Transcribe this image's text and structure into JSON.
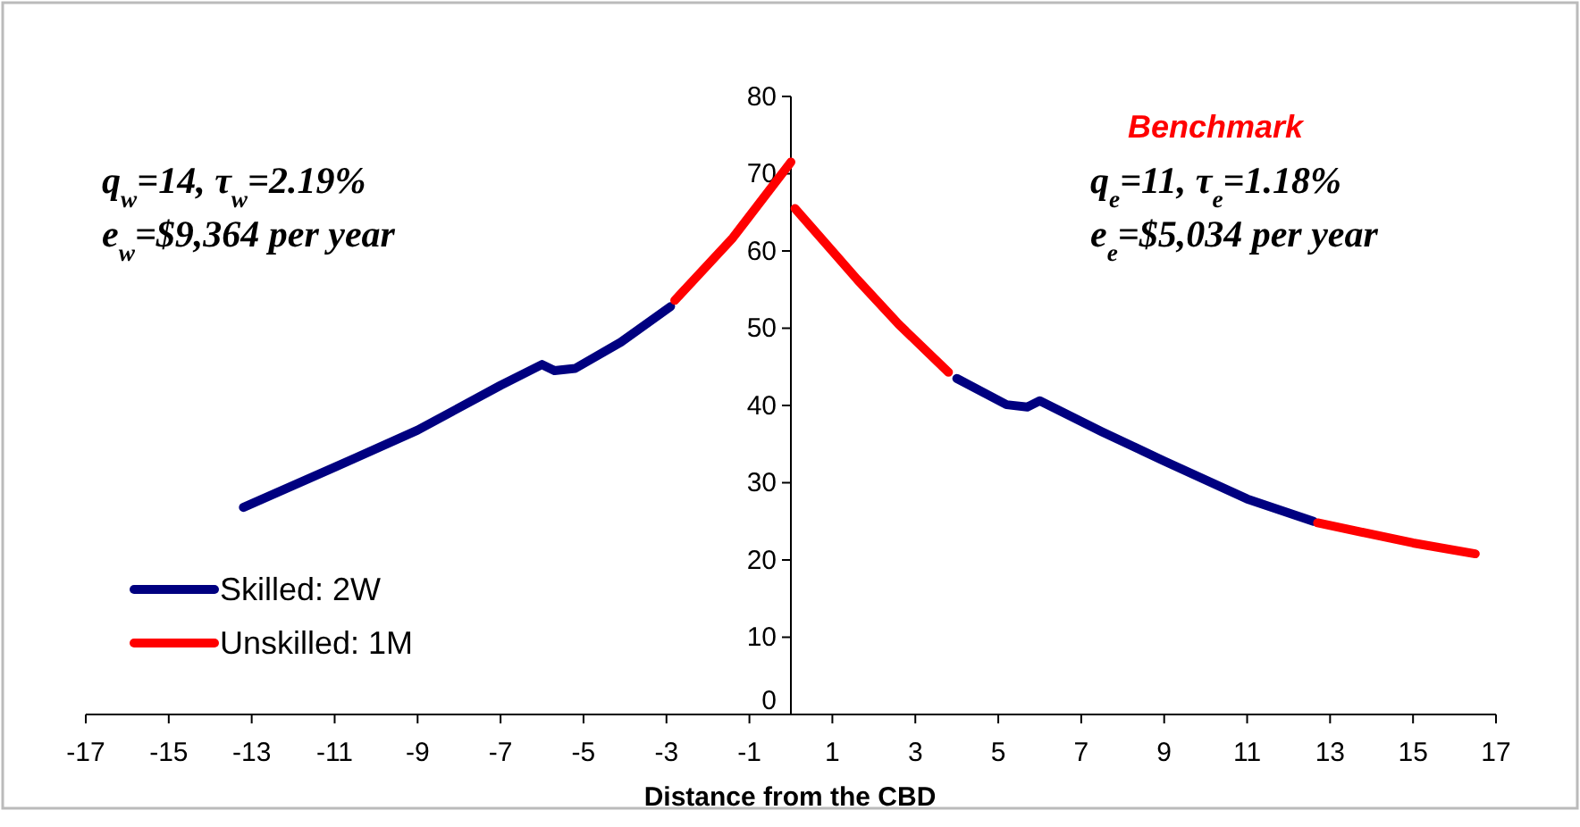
{
  "chart_data": {
    "type": "line",
    "xlabel": "Distance from the CBD",
    "xlim": [
      -17,
      17
    ],
    "xticks": [
      -17,
      -15,
      -13,
      -11,
      -9,
      -7,
      -5,
      -3,
      -1,
      1,
      3,
      5,
      7,
      9,
      11,
      13,
      15,
      17
    ],
    "ylim": [
      0,
      80
    ],
    "yticks": [
      0,
      10,
      20,
      30,
      40,
      50,
      60,
      70,
      80
    ],
    "grid": false,
    "legend": "bottom left",
    "marker": "none",
    "line_style": "solid",
    "annotations": [
      "Benchmark",
      "q$_{w}$=14, τ$_{w}$=2.19%",
      "e$_{w}$=$9,364 per year",
      "q$_{e}$=11, τ$_{e}$=1.18%",
      "e$_{e}$=$5,034 per year"
    ],
    "series": [
      {
        "name": "Skilled: 2W",
        "color": "#000080",
        "x": [
          -13.2,
          -11,
          -9,
          -7,
          -6,
          -5.7,
          -5.2,
          -4.1,
          -2.9,
          0,
          4.0,
          5.2,
          5.7,
          6.0,
          7.5,
          9.0,
          11.0,
          12.6
        ],
        "values": [
          26.8,
          32.0,
          36.8,
          42.6,
          45.3,
          44.5,
          44.8,
          48.2,
          52.8,
          null,
          43.5,
          40.1,
          39.8,
          40.6,
          36.6,
          32.8,
          27.9,
          25.0
        ]
      },
      {
        "name": "Unskilled: 1M",
        "color": "#ff0000",
        "x": [
          -2.8,
          -1.4,
          0,
          0.05,
          0.1,
          1.6,
          2.6,
          3.8,
          8,
          12.7,
          15.0,
          16.5
        ],
        "values": [
          53.6,
          61.7,
          71.5,
          null,
          65.5,
          56.3,
          50.5,
          44.3,
          null,
          24.8,
          22.2,
          20.8
        ]
      }
    ]
  }
}
